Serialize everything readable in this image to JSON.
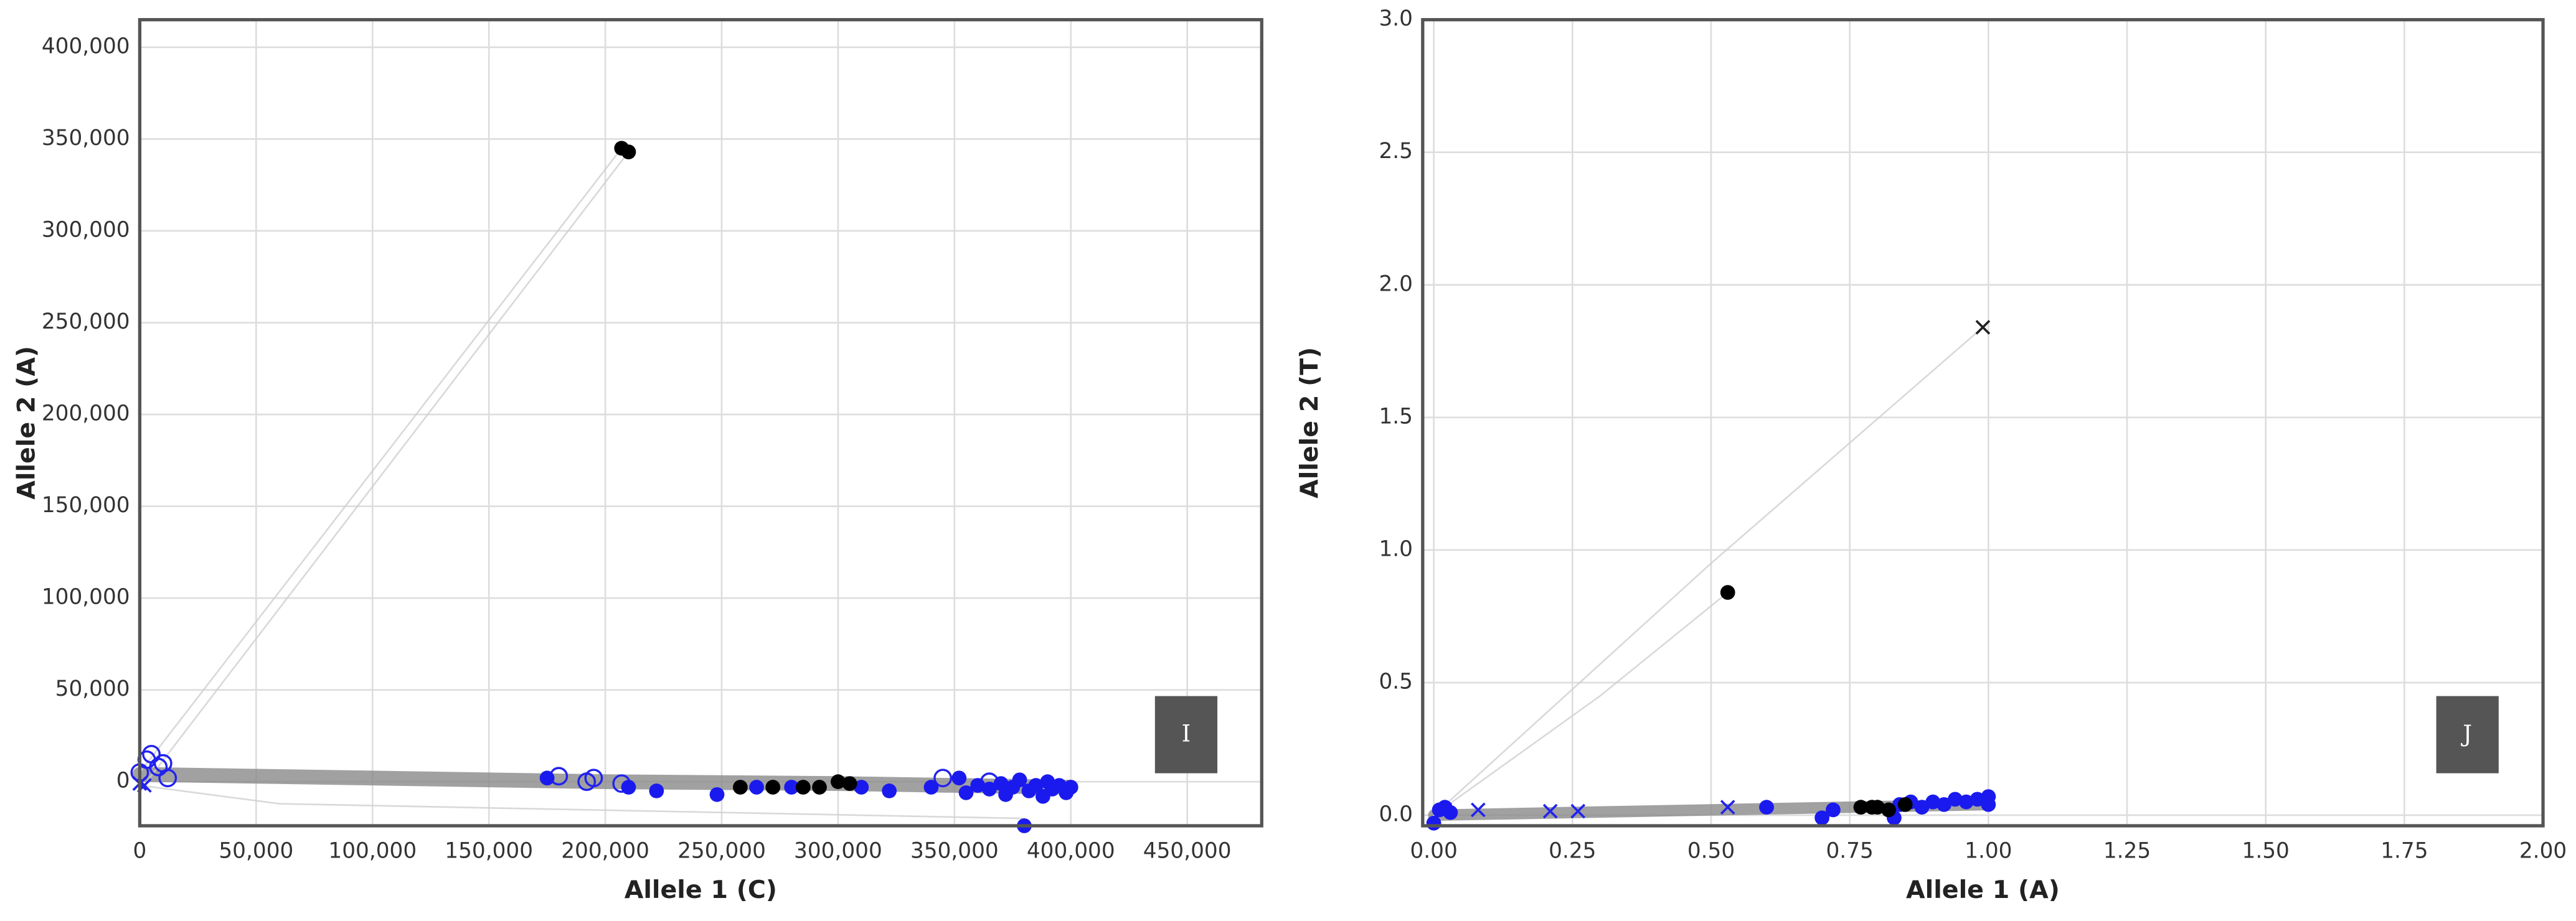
{
  "chart_data": [
    {
      "type": "scatter",
      "x_label": "Allele 1 (C)",
      "y_label": "Allele 2 (A)",
      "annotation": "I",
      "grid": true,
      "xlim": [
        0,
        482000
      ],
      "ylim": [
        -24000,
        415000
      ],
      "xticks": [
        0,
        {
          "value": 50000,
          "label": "50,000"
        },
        {
          "value": 100000,
          "label": "100,000"
        },
        {
          "value": 150000,
          "label": "150,000"
        },
        {
          "value": 200000,
          "label": "200,000"
        },
        {
          "value": 250000,
          "label": "250,000"
        },
        {
          "value": 300000,
          "label": "300,000"
        },
        {
          "value": 350000,
          "label": "350,000"
        },
        {
          "value": 400000,
          "label": "400,000"
        },
        {
          "value": 450000,
          "label": "450,000"
        }
      ],
      "yticks": [
        0,
        {
          "value": 50000,
          "label": "50,000"
        },
        {
          "value": 100000,
          "label": "100,000"
        },
        {
          "value": 150000,
          "label": "150,000"
        },
        {
          "value": 200000,
          "label": "200,000"
        },
        {
          "value": 250000,
          "label": "250,000"
        },
        {
          "value": 300000,
          "label": "300,000"
        },
        {
          "value": 350000,
          "label": "350,000"
        },
        {
          "value": 400000,
          "label": "400,000"
        }
      ],
      "series": [
        {
          "marker": "line",
          "color": "#8a8a8a",
          "line_width": 9,
          "x": [
            0,
            100000,
            200000,
            300000,
            400000
          ],
          "y": [
            4000,
            2000,
            0,
            -1000,
            -3000
          ]
        },
        {
          "marker": "line",
          "color": "#cfcfcf",
          "line_width": 1,
          "x": [
            0,
            207000
          ],
          "y": [
            5000,
            345000
          ]
        },
        {
          "marker": "line",
          "color": "#cfcfcf",
          "line_width": 1,
          "x": [
            3000,
            210000
          ],
          "y": [
            0,
            343000
          ]
        },
        {
          "marker": "line",
          "color": "#cfcfcf",
          "line_width": 1,
          "x": [
            0,
            60000,
            380000
          ],
          "y": [
            -2000,
            -12000,
            -20000
          ]
        },
        {
          "marker": "open-circle",
          "color": "#2222ee",
          "x": [
            0,
            3000,
            5000,
            8000,
            10000,
            12000,
            180000,
            192000,
            195000,
            207000,
            345000,
            365000
          ],
          "y": [
            5000,
            12000,
            15000,
            8000,
            10000,
            2000,
            3000,
            0,
            2000,
            -1000,
            2000,
            0
          ]
        },
        {
          "marker": "x",
          "color": "#2222ee",
          "x": [
            2000,
            0
          ],
          "y": [
            -2000,
            -1000
          ]
        },
        {
          "marker": "circle",
          "color": "#1a1aee",
          "x": [
            175000,
            210000,
            222000,
            248000,
            265000,
            280000,
            310000,
            322000,
            340000,
            352000,
            355000,
            360000,
            365000,
            370000,
            372000,
            375000,
            378000,
            380000,
            382000,
            385000,
            388000,
            390000,
            392000,
            395000,
            398000,
            400000
          ],
          "y": [
            2000,
            -3000,
            -5000,
            -7000,
            -3000,
            -3000,
            -3000,
            -5000,
            -3000,
            2000,
            -6000,
            -2000,
            -4000,
            -1000,
            -7000,
            -3000,
            1000,
            -24000,
            -5000,
            -2000,
            -8000,
            0,
            -4000,
            -2000,
            -6000,
            -3000
          ]
        },
        {
          "marker": "circle",
          "color": "#000000",
          "x": [
            207000,
            210000,
            258000,
            272000,
            285000,
            292000,
            300000,
            305000
          ],
          "y": [
            345000,
            343000,
            -3000,
            -3000,
            -3000,
            -3000,
            0,
            -1000
          ]
        }
      ]
    },
    {
      "type": "scatter",
      "x_label": "Allele 1 (A)",
      "y_label": "Allele 2 (T)",
      "annotation": "J",
      "grid": true,
      "xlim": [
        -0.02,
        2.0
      ],
      "ylim": [
        -0.04,
        3.0
      ],
      "xticks": [
        {
          "value": 0,
          "label": "0.00"
        },
        {
          "value": 0.25,
          "label": "0.25"
        },
        {
          "value": 0.5,
          "label": "0.50"
        },
        {
          "value": 0.75,
          "label": "0.75"
        },
        {
          "value": 1,
          "label": "1.00"
        },
        {
          "value": 1.25,
          "label": "1.25"
        },
        {
          "value": 1.5,
          "label": "1.50"
        },
        {
          "value": 1.75,
          "label": "1.75"
        },
        {
          "value": 2,
          "label": "2.00"
        }
      ],
      "yticks": [
        {
          "value": 0,
          "label": "0.0"
        },
        {
          "value": 0.5,
          "label": "0.5"
        },
        {
          "value": 1,
          "label": "1.0"
        },
        {
          "value": 1.5,
          "label": "1.5"
        },
        {
          "value": 2,
          "label": "2.0"
        },
        {
          "value": 2.5,
          "label": "2.5"
        },
        {
          "value": 3,
          "label": "3.0"
        }
      ],
      "series": [
        {
          "marker": "line",
          "color": "#8a8a8a",
          "line_width": 7,
          "x": [
            0,
            0.5,
            1
          ],
          "y": [
            0,
            0.02,
            0.04
          ]
        },
        {
          "marker": "line",
          "color": "#cfcfcf",
          "line_width": 1,
          "x": [
            0,
            0.3,
            0.53
          ],
          "y": [
            0,
            0.45,
            0.84
          ]
        },
        {
          "marker": "line",
          "color": "#cfcfcf",
          "line_width": 1,
          "x": [
            0,
            0.5,
            0.99
          ],
          "y": [
            0,
            0.95,
            1.84
          ]
        },
        {
          "marker": "x",
          "color": "#2222ee",
          "x": [
            0.02,
            0.08,
            0.21,
            0.26,
            0.53
          ],
          "y": [
            0.02,
            0.02,
            0.015,
            0.015,
            0.03
          ]
        },
        {
          "marker": "x",
          "color": "#222222",
          "x": [
            0.99
          ],
          "y": [
            1.84
          ]
        },
        {
          "marker": "circle",
          "color": "#1a1aee",
          "x": [
            0,
            0.01,
            0.02,
            0.03,
            0.6,
            0.7,
            0.72,
            0.83,
            0.84,
            0.86,
            0.88,
            0.9,
            0.92,
            0.94,
            0.96,
            0.98,
            1.0,
            1.0
          ],
          "y": [
            -0.03,
            0.02,
            0.03,
            0.01,
            0.03,
            -0.01,
            0.02,
            -0.01,
            0.04,
            0.05,
            0.03,
            0.05,
            0.04,
            0.06,
            0.05,
            0.06,
            0.04,
            0.07
          ]
        },
        {
          "marker": "circle",
          "color": "#000000",
          "x": [
            0.53,
            0.77,
            0.79,
            0.8,
            0.82,
            0.85
          ],
          "y": [
            0.84,
            0.03,
            0.03,
            0.03,
            0.02,
            0.04
          ]
        }
      ]
    }
  ]
}
